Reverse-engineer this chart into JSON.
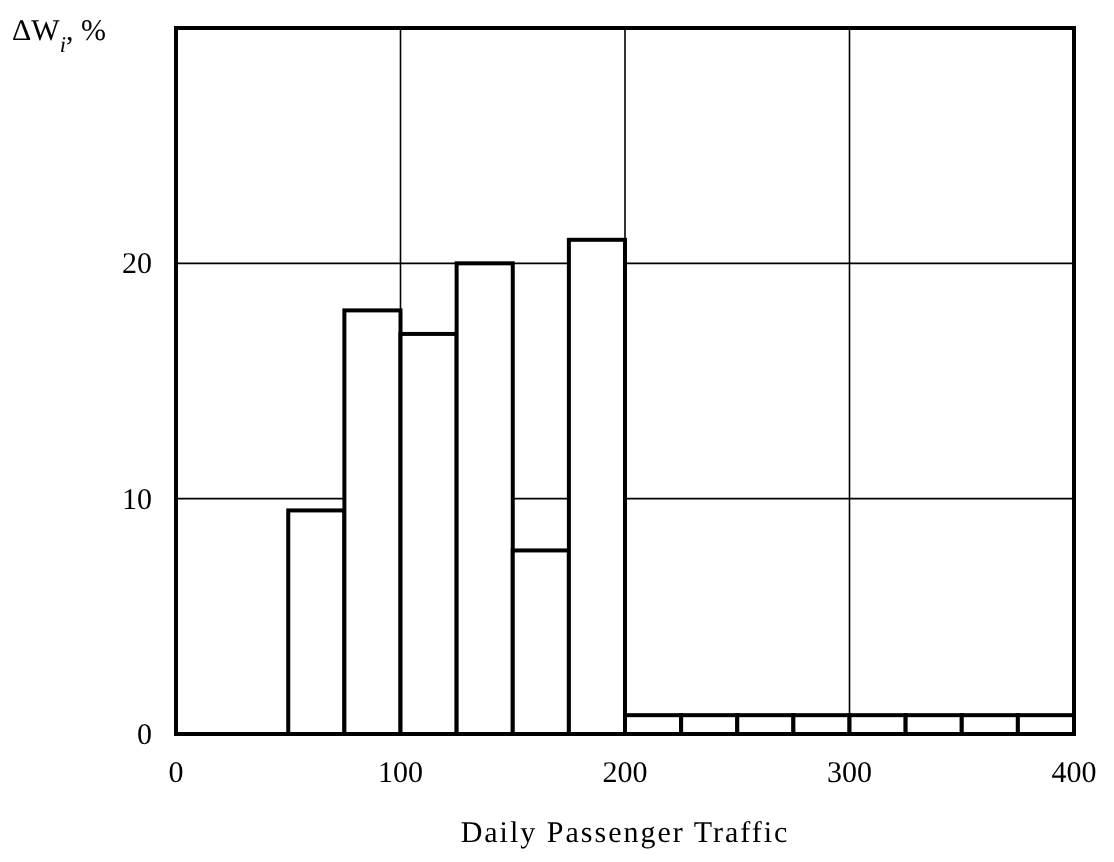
{
  "chart_data": {
    "type": "histogram",
    "xlabel": "Daily Passenger Traffic",
    "ylabel": "ΔW$_{i}$, %",
    "bins": [
      50,
      75,
      100,
      125,
      150,
      175,
      200,
      225,
      250,
      275,
      300,
      325,
      350,
      375,
      400
    ],
    "values": [
      9.5,
      18,
      17,
      20,
      7.8,
      21,
      0.8,
      0.8,
      0.8,
      0.8,
      0.8,
      0.8,
      0.8,
      0.8
    ],
    "color": "#ffffff",
    "xlim": [
      0,
      400
    ],
    "xticks": [
      0,
      100,
      200,
      300,
      400
    ],
    "ylim": [
      0,
      30
    ],
    "yticks": [
      0,
      10,
      20
    ],
    "grid": true
  }
}
